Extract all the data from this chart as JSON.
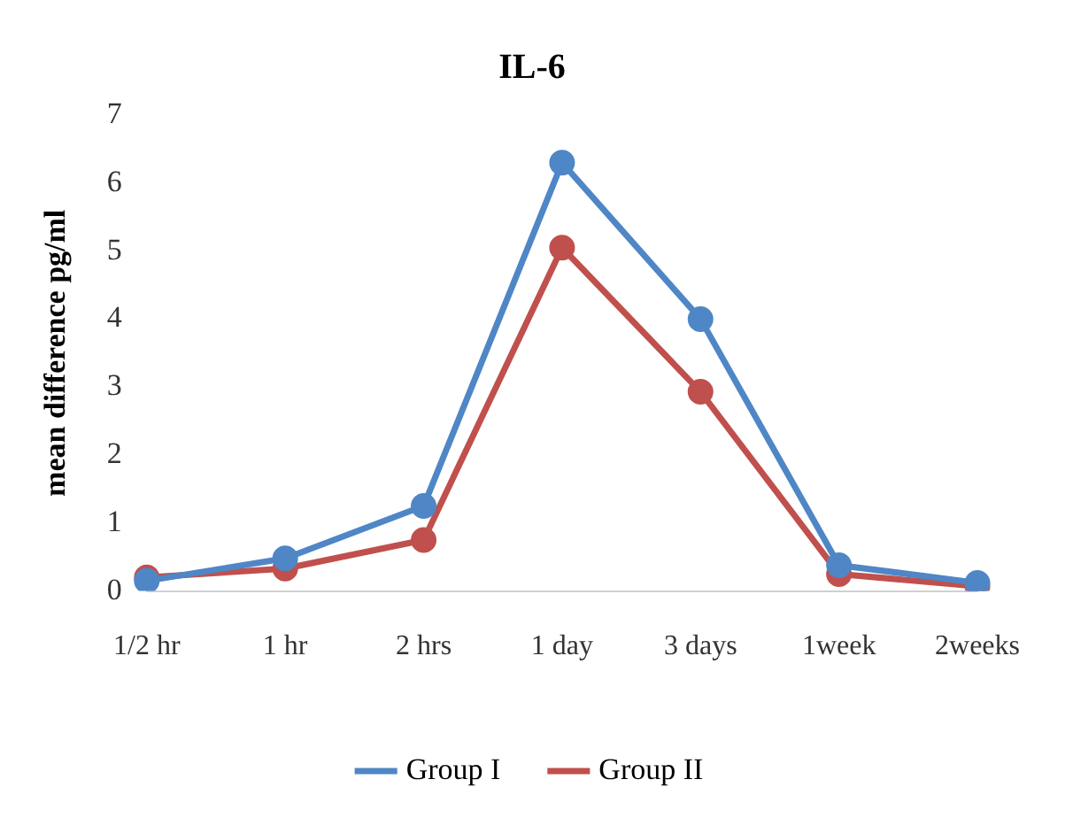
{
  "chart_data": {
    "type": "line",
    "title": "IL-6",
    "ylabel": "mean difference pg/ml",
    "categories": [
      "1/2 hr",
      "1 hr",
      "2 hrs",
      "1 day",
      "3 days",
      "1week",
      "2weeks"
    ],
    "series": [
      {
        "name": "Group I",
        "color": "#4f86c6",
        "values": [
          0.15,
          0.48,
          1.25,
          6.3,
          4.0,
          0.38,
          0.12
        ]
      },
      {
        "name": "Group II",
        "color": "#c0504d",
        "values": [
          0.2,
          0.33,
          0.75,
          5.05,
          2.93,
          0.25,
          0.07
        ]
      }
    ],
    "ylim": [
      0,
      7
    ],
    "yticks": [
      0,
      1,
      2,
      3,
      4,
      5,
      6,
      7
    ],
    "grid": false,
    "legend": "bottom",
    "marker": "circle",
    "line_style": "solid"
  }
}
